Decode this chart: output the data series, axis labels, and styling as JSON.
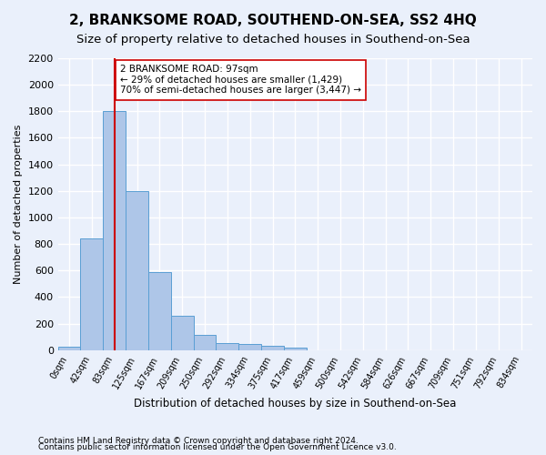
{
  "title": "2, BRANKSOME ROAD, SOUTHEND-ON-SEA, SS2 4HQ",
  "subtitle": "Size of property relative to detached houses in Southend-on-Sea",
  "xlabel": "Distribution of detached houses by size in Southend-on-Sea",
  "ylabel": "Number of detached properties",
  "bar_values": [
    25,
    840,
    1800,
    1200,
    590,
    260,
    115,
    50,
    48,
    32,
    18,
    0,
    0,
    0,
    0,
    0,
    0,
    0,
    0,
    0,
    0
  ],
  "bar_labels": [
    "0sqm",
    "42sqm",
    "83sqm",
    "125sqm",
    "167sqm",
    "209sqm",
    "250sqm",
    "292sqm",
    "334sqm",
    "375sqm",
    "417sqm",
    "459sqm",
    "500sqm",
    "542sqm",
    "584sqm",
    "626sqm",
    "667sqm",
    "709sqm",
    "751sqm",
    "792sqm",
    "834sqm"
  ],
  "bar_color": "#aec6e8",
  "bar_edge_color": "#5a9fd4",
  "vline_x": 2,
  "vline_color": "#cc0000",
  "annotation_text": "2 BRANKSOME ROAD: 97sqm\n← 29% of detached houses are smaller (1,429)\n70% of semi-detached houses are larger (3,447) →",
  "annotation_box_color": "#ffffff",
  "annotation_box_edge": "#cc0000",
  "ylim": [
    0,
    2200
  ],
  "yticks": [
    0,
    200,
    400,
    600,
    800,
    1000,
    1200,
    1400,
    1600,
    1800,
    2000,
    2200
  ],
  "footnote1": "Contains HM Land Registry data © Crown copyright and database right 2024.",
  "footnote2": "Contains public sector information licensed under the Open Government Licence v3.0.",
  "background_color": "#eaf0fb",
  "plot_bg_color": "#eaf0fb",
  "grid_color": "#ffffff",
  "title_fontsize": 11,
  "subtitle_fontsize": 9.5
}
